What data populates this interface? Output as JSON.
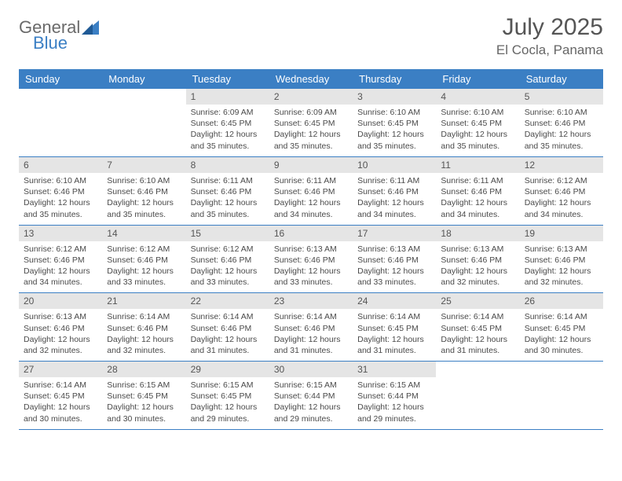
{
  "brand": {
    "word1": "General",
    "word2": "Blue",
    "logo_color": "#3b7fc4"
  },
  "title": {
    "month": "July 2025",
    "location": "El Cocla, Panama"
  },
  "header_row_color": "#3b7fc4",
  "daynum_bg": "#e5e5e5",
  "text_color": "#4a4a4a",
  "font_size_info": 10.5,
  "font_size_daynum": 12,
  "days": [
    "Sunday",
    "Monday",
    "Tuesday",
    "Wednesday",
    "Thursday",
    "Friday",
    "Saturday"
  ],
  "weeks": [
    [
      null,
      null,
      {
        "n": 1,
        "sr": "6:09 AM",
        "ss": "6:45 PM",
        "dl": "12 hours and 35 minutes."
      },
      {
        "n": 2,
        "sr": "6:09 AM",
        "ss": "6:45 PM",
        "dl": "12 hours and 35 minutes."
      },
      {
        "n": 3,
        "sr": "6:10 AM",
        "ss": "6:45 PM",
        "dl": "12 hours and 35 minutes."
      },
      {
        "n": 4,
        "sr": "6:10 AM",
        "ss": "6:45 PM",
        "dl": "12 hours and 35 minutes."
      },
      {
        "n": 5,
        "sr": "6:10 AM",
        "ss": "6:46 PM",
        "dl": "12 hours and 35 minutes."
      }
    ],
    [
      {
        "n": 6,
        "sr": "6:10 AM",
        "ss": "6:46 PM",
        "dl": "12 hours and 35 minutes."
      },
      {
        "n": 7,
        "sr": "6:10 AM",
        "ss": "6:46 PM",
        "dl": "12 hours and 35 minutes."
      },
      {
        "n": 8,
        "sr": "6:11 AM",
        "ss": "6:46 PM",
        "dl": "12 hours and 35 minutes."
      },
      {
        "n": 9,
        "sr": "6:11 AM",
        "ss": "6:46 PM",
        "dl": "12 hours and 34 minutes."
      },
      {
        "n": 10,
        "sr": "6:11 AM",
        "ss": "6:46 PM",
        "dl": "12 hours and 34 minutes."
      },
      {
        "n": 11,
        "sr": "6:11 AM",
        "ss": "6:46 PM",
        "dl": "12 hours and 34 minutes."
      },
      {
        "n": 12,
        "sr": "6:12 AM",
        "ss": "6:46 PM",
        "dl": "12 hours and 34 minutes."
      }
    ],
    [
      {
        "n": 13,
        "sr": "6:12 AM",
        "ss": "6:46 PM",
        "dl": "12 hours and 34 minutes."
      },
      {
        "n": 14,
        "sr": "6:12 AM",
        "ss": "6:46 PM",
        "dl": "12 hours and 33 minutes."
      },
      {
        "n": 15,
        "sr": "6:12 AM",
        "ss": "6:46 PM",
        "dl": "12 hours and 33 minutes."
      },
      {
        "n": 16,
        "sr": "6:13 AM",
        "ss": "6:46 PM",
        "dl": "12 hours and 33 minutes."
      },
      {
        "n": 17,
        "sr": "6:13 AM",
        "ss": "6:46 PM",
        "dl": "12 hours and 33 minutes."
      },
      {
        "n": 18,
        "sr": "6:13 AM",
        "ss": "6:46 PM",
        "dl": "12 hours and 32 minutes."
      },
      {
        "n": 19,
        "sr": "6:13 AM",
        "ss": "6:46 PM",
        "dl": "12 hours and 32 minutes."
      }
    ],
    [
      {
        "n": 20,
        "sr": "6:13 AM",
        "ss": "6:46 PM",
        "dl": "12 hours and 32 minutes."
      },
      {
        "n": 21,
        "sr": "6:14 AM",
        "ss": "6:46 PM",
        "dl": "12 hours and 32 minutes."
      },
      {
        "n": 22,
        "sr": "6:14 AM",
        "ss": "6:46 PM",
        "dl": "12 hours and 31 minutes."
      },
      {
        "n": 23,
        "sr": "6:14 AM",
        "ss": "6:46 PM",
        "dl": "12 hours and 31 minutes."
      },
      {
        "n": 24,
        "sr": "6:14 AM",
        "ss": "6:45 PM",
        "dl": "12 hours and 31 minutes."
      },
      {
        "n": 25,
        "sr": "6:14 AM",
        "ss": "6:45 PM",
        "dl": "12 hours and 31 minutes."
      },
      {
        "n": 26,
        "sr": "6:14 AM",
        "ss": "6:45 PM",
        "dl": "12 hours and 30 minutes."
      }
    ],
    [
      {
        "n": 27,
        "sr": "6:14 AM",
        "ss": "6:45 PM",
        "dl": "12 hours and 30 minutes."
      },
      {
        "n": 28,
        "sr": "6:15 AM",
        "ss": "6:45 PM",
        "dl": "12 hours and 30 minutes."
      },
      {
        "n": 29,
        "sr": "6:15 AM",
        "ss": "6:45 PM",
        "dl": "12 hours and 29 minutes."
      },
      {
        "n": 30,
        "sr": "6:15 AM",
        "ss": "6:44 PM",
        "dl": "12 hours and 29 minutes."
      },
      {
        "n": 31,
        "sr": "6:15 AM",
        "ss": "6:44 PM",
        "dl": "12 hours and 29 minutes."
      },
      null,
      null
    ]
  ],
  "labels": {
    "sunrise": "Sunrise:",
    "sunset": "Sunset:",
    "daylight": "Daylight:"
  }
}
